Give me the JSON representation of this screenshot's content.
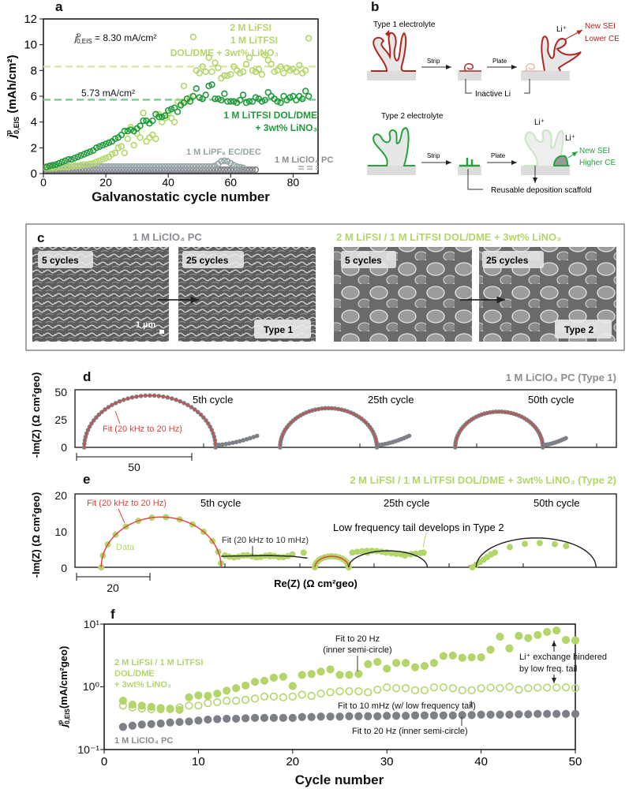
{
  "colors": {
    "dark_green": "#1f9a3a",
    "light_green": "#b3d66a",
    "gray": "#7d8086",
    "blue_gray": "#96a4a8",
    "red": "#e0413a",
    "type1_red": "#b0271f",
    "type2_green": "#22a33c"
  },
  "panels": {
    "a": {
      "letter": "a"
    },
    "b": {
      "letter": "b",
      "type1": "Type 1 electrolyte",
      "type2": "Type 2 electrolyte",
      "strip": "Strip",
      "plate": "Plate",
      "li_ion": "Li⁺",
      "inactive_li": "Inactive Li",
      "new_sei_lower_1": "New SEI",
      "new_sei_lower_2": "Lower CE",
      "new_sei_higher_1": "New SEI",
      "new_sei_higher_2": "Higher CE",
      "scaffold": "Reusable deposition scaffold"
    },
    "c": {
      "letter": "c",
      "title_left": "1 M LiClO₄ PC",
      "title_right": "2 M LiFSI / 1 M LiTFSI DOL/DME + 3wt% LiNO₃",
      "img1": "5 cycles",
      "img2": "25 cycles",
      "img3": "5 cycles",
      "img4": "25 cycles",
      "type1": "Type 1",
      "type2": "Type 2",
      "scalebar": "1 µm"
    },
    "d": {
      "letter": "d"
    },
    "e": {
      "letter": "e"
    },
    "f": {
      "letter": "f"
    }
  },
  "chart_data": [
    {
      "id": "a",
      "type": "scatter",
      "xlabel": "Galvanostatic cycle number",
      "ylabel": {
        "main": "j",
        "sup": "p",
        "sub": "0,EIS",
        "rest": " (mAh/cm²)"
      },
      "xlim": [
        0,
        88
      ],
      "ylim": [
        0,
        12
      ],
      "xticks": [
        0,
        20,
        40,
        60,
        80
      ],
      "yticks": [
        0,
        2,
        4,
        6,
        8,
        10,
        12
      ],
      "reference_lines": [
        {
          "value": 8.3,
          "label_main": "j",
          "label_sup": "p",
          "label_sub": "0,EIS",
          "label_rest": " = 8.30 mA/cm²",
          "color": "#d9e8a6"
        },
        {
          "value": 5.73,
          "label": "5.73 mA/cm²",
          "color": "#7fcc96"
        }
      ],
      "series": [
        {
          "name": "2 M LiFSI / 1 M LiTFSI DOL/DME + 3wt% LiNO₃",
          "label_lines": [
            "2 M LiFSI",
            "1 M LiTFSI",
            "DOL/DME + 3wt% LiNO₃"
          ],
          "color": "#b3d66a",
          "marker": "open-circle",
          "start_cycle": 1,
          "values": [
            0.4,
            0.4,
            0.45,
            0.45,
            0.5,
            0.5,
            0.5,
            0.5,
            0.55,
            0.6,
            0.6,
            0.65,
            0.7,
            0.7,
            0.75,
            0.8,
            0.9,
            1.0,
            1.1,
            1.2,
            1.3,
            1.5,
            1.6,
            2.0,
            2.1,
            1.6,
            2.7,
            3.6,
            2.2,
            3.1,
            2.8,
            4.7,
            2.5,
            2.8,
            3.0,
            2.7,
            4.6,
            4.0,
            4.3,
            4.7,
            4.3,
            4.0,
            5.6,
            5.4,
            6.8,
            5.6,
            5.9,
            10.6,
            8.0,
            7.8,
            8.3,
            7.9,
            9.0,
            7.9,
            8.6,
            8.2,
            7.4,
            7.6,
            7.6,
            7.7,
            8.3,
            8.0,
            7.8,
            7.9,
            8.5,
            9.0,
            8.0,
            7.9,
            8.1,
            7.7,
            9.2,
            8.8,
            8.5,
            7.9,
            8.0,
            8.3,
            7.8,
            8.2,
            8.0,
            8.1,
            7.9,
            8.4,
            7.8,
            8.0,
            10.5
          ]
        },
        {
          "name": "1 M LiTFSI DOL/DME + 3wt% LiNO₃",
          "label_lines": [
            "1 M LiTFSI DOL/DME",
            "+ 3wt% LiNO₃"
          ],
          "color": "#1f9a3a",
          "marker": "open-circle",
          "start_cycle": 1,
          "values": [
            0.5,
            0.6,
            0.65,
            0.7,
            0.8,
            0.9,
            1.0,
            1.1,
            1.1,
            1.2,
            1.3,
            1.4,
            1.5,
            1.6,
            1.7,
            1.8,
            2.0,
            2.1,
            2.2,
            2.3,
            2.4,
            2.5,
            2.7,
            2.8,
            3.0,
            3.3,
            3.3,
            3.4,
            3.3,
            3.5,
            3.7,
            4.1,
            4.1,
            3.9,
            4.1,
            4.6,
            4.4,
            4.4,
            4.5,
            4.9,
            5.0,
            5.1,
            4.8,
            5.3,
            5.5,
            5.8,
            5.6,
            6.0,
            6.6,
            5.9,
            5.8,
            6.1,
            6.8,
            6.9,
            5.8,
            5.8,
            5.7,
            6.2,
            5.6,
            5.6,
            5.6,
            5.5,
            5.7,
            6.1,
            5.5,
            5.6,
            5.6,
            5.9,
            5.8,
            5.6,
            5.7,
            6.3,
            6.0,
            5.8,
            5.6,
            5.5,
            6.0,
            5.7,
            5.9,
            6.0,
            5.7,
            6.0,
            5.8,
            6.4,
            6.0
          ]
        },
        {
          "name": "1 M LiPF₆ EC/DEC",
          "label_lines": [
            "1 M LiPF₆ EC/DEC"
          ],
          "color": "#96a4a8",
          "marker": "open-circle",
          "start_cycle": 1,
          "values": [
            0.55,
            0.55,
            0.55,
            0.55,
            0.55,
            0.55,
            0.55,
            0.55,
            0.55,
            0.55,
            0.55,
            0.55,
            0.55,
            0.55,
            0.55,
            0.55,
            0.55,
            0.55,
            0.55,
            0.55,
            0.55,
            0.55,
            0.55,
            0.55,
            0.55,
            0.55,
            0.55,
            0.55,
            0.55,
            0.55,
            0.55,
            0.55,
            0.55,
            0.55,
            0.55,
            0.55,
            0.55,
            0.55,
            0.55,
            0.55,
            0.55,
            0.55,
            0.55,
            0.55,
            0.55,
            0.55,
            0.55,
            0.55,
            0.55,
            0.55,
            0.55,
            0.55,
            0.55,
            0.55,
            0.6,
            0.75,
            0.95,
            1.0,
            0.95,
            0.8,
            0.65,
            0.55,
            0.5,
            0.45
          ]
        },
        {
          "name": "1 M LiClO₄ PC",
          "label_lines": [
            "1 M LiClO₄ PC"
          ],
          "color": "#7d8086",
          "marker": "open-circle",
          "start_cycle": 1,
          "values": [
            0.3,
            0.3,
            0.3,
            0.3,
            0.3,
            0.3,
            0.3,
            0.3,
            0.3,
            0.3,
            0.3,
            0.3,
            0.3,
            0.3,
            0.3,
            0.3,
            0.3,
            0.3,
            0.3,
            0.3,
            0.3,
            0.3,
            0.3,
            0.3,
            0.3,
            0.3,
            0.3,
            0.3,
            0.3,
            0.3,
            0.3,
            0.3,
            0.3,
            0.3,
            0.3,
            0.3,
            0.3,
            0.3,
            0.3,
            0.3,
            0.3,
            0.3,
            0.3,
            0.3,
            0.3,
            0.3,
            0.3,
            0.3,
            0.3,
            0.3,
            0.3,
            0.3,
            0.3,
            0.3,
            0.3,
            0.3,
            0.3,
            0.3,
            0.3,
            0.3,
            0.3,
            0.3,
            0.3,
            0.3,
            0.3,
            0.3,
            0.3,
            0.3
          ]
        }
      ],
      "grid": false
    },
    {
      "id": "d",
      "type": "line",
      "title": "1 M LiClO₄ PC (Type 1)",
      "ylabel": "-Im(Z) (Ω cm²geo)",
      "yticks": [
        0,
        25,
        50
      ],
      "ylim": [
        0,
        50
      ],
      "scale_bar": "50",
      "fit_label": "Fit (20 kHz to 20 Hz)",
      "cycles": [
        {
          "label": "5th cycle",
          "re_start": 4,
          "re_end": 61,
          "peak": 45,
          "tail_re": 79,
          "tail_im": 10
        },
        {
          "label": "25th cycle",
          "re_start": 89,
          "re_end": 131,
          "peak": 34,
          "tail_re": 145,
          "tail_im": 10
        },
        {
          "label": "50th cycle",
          "re_start": 165,
          "re_end": 203,
          "peak": 31,
          "tail_re": 213,
          "tail_im": 8
        }
      ]
    },
    {
      "id": "e",
      "type": "line",
      "title": "2 M LiFSI / 1 M LiTFSI DOL/DME + 3wt% LiNO₃ (Type 2)",
      "ylabel": "-Im(Z) (Ω cm²geo)",
      "xlabel": "Re(Z) (Ω cm²geo)",
      "yticks": [
        0,
        10,
        20
      ],
      "ylim": [
        0,
        20
      ],
      "scale_bar": "20",
      "fit_hf_label": "Fit (20 kHz to 20 Hz)",
      "fit_lf_label": "Fit (20 kHz to 10 mHz)",
      "data_label": "Data",
      "annotation": "Low frequency tail develops in Type 2",
      "cycles": [
        {
          "label": "5th cycle",
          "re_start": 7,
          "re_end": 39,
          "peak": 13.7,
          "tail": [
            [
              45,
              3.2
            ],
            [
              52,
              3
            ],
            [
              58,
              3.5
            ],
            [
              61,
              4
            ]
          ],
          "lf_fit_end": [
            62,
            2.5
          ]
        },
        {
          "label": "25th cycle",
          "small_arc": [
            64,
            73,
            3
          ],
          "re_end": 94,
          "peak": 4.5,
          "tail": [
            [
              78,
              4
            ],
            [
              83,
              4
            ],
            [
              88,
              3.2
            ],
            [
              93,
              4
            ]
          ]
        },
        {
          "label": "50th cycle",
          "small_arc": [
            105,
            107,
            0.6
          ],
          "re_end": 139,
          "peak": 8,
          "tail": [
            [
              112,
              4
            ],
            [
              116,
              5.5
            ],
            [
              120,
              6.4
            ],
            [
              124,
              6.6
            ],
            [
              128,
              6.3
            ],
            [
              131,
              5.8
            ]
          ]
        }
      ]
    },
    {
      "id": "f",
      "type": "scatter",
      "xlabel": "Cycle number",
      "ylabel": {
        "main": "j",
        "sup": "p",
        "sub": "0,EIS",
        "rest": "(mA/cm²geo)"
      },
      "xlim": [
        0,
        50
      ],
      "ylim": [
        0.1,
        10
      ],
      "yscale": "log",
      "xticks": [
        0,
        10,
        20,
        30,
        40,
        50
      ],
      "yticks": [
        "10⁻¹",
        "10⁰",
        "10¹"
      ],
      "labels": {
        "green": [
          "2 M LiFSI / 1 M LiTFSI",
          "DOL/DME",
          "+ 3wt% LiNO₃"
        ],
        "gray": "1 M LiClO₄ PC"
      },
      "annotations": {
        "fit20_top": [
          "Fit to 20 Hz",
          "(inner semi-circle)"
        ],
        "fit10": "Fit to 10 mHz (w/ low frequency tail)",
        "fit20_bottom": "Fit to 20 Hz (inner semi-circle)",
        "hindered": [
          "Li⁺ exchange hindered",
          "by low freq. tail"
        ]
      },
      "series": [
        {
          "color": "#b3d66a",
          "marker": "filled-circle",
          "start_cycle": 2,
          "values": [
            0.6,
            0.52,
            0.5,
            0.48,
            0.46,
            0.45,
            0.43,
            0.68,
            0.73,
            0.72,
            0.78,
            0.87,
            0.95,
            1.05,
            1.2,
            1.25,
            1.4,
            1.45,
            1.03,
            1.55,
            1.6,
            1.75,
            1.9,
            1.55,
            1.55,
            1.6,
            2.3,
            2.5,
            1.95,
            2.4,
            2.4,
            2.05,
            2.15,
            2.4,
            3.1,
            3.15,
            2.9,
            2.95,
            2.95,
            3.9,
            6.3,
            4.1,
            6.5,
            6.0,
            6.7,
            7.5,
            7.9,
            5.6,
            5.5
          ]
        },
        {
          "color": "#b3d66a",
          "marker": "open-circle",
          "start_cycle": 2,
          "values": [
            0.5,
            0.47,
            0.45,
            0.44,
            0.44,
            0.44,
            0.47,
            0.5,
            0.5,
            0.55,
            0.57,
            0.6,
            0.6,
            0.62,
            0.65,
            0.7,
            0.7,
            0.68,
            0.7,
            0.75,
            0.72,
            0.78,
            0.82,
            0.85,
            0.85,
            0.85,
            0.82,
            0.9,
            0.98,
            0.95,
            0.95,
            0.88,
            0.88,
            0.98,
            0.98,
            0.95,
            0.88,
            0.88,
            0.95,
            0.97,
            0.95,
            1.0,
            0.9,
            0.95,
            0.97,
            0.97,
            0.97,
            0.98,
            0.95
          ]
        },
        {
          "color": "#7d8086",
          "marker": "filled-circle",
          "start_cycle": 2,
          "values": [
            0.23,
            0.24,
            0.25,
            0.255,
            0.26,
            0.27,
            0.275,
            0.28,
            0.29,
            0.3,
            0.305,
            0.31,
            0.31,
            0.315,
            0.32,
            0.32,
            0.32,
            0.32,
            0.32,
            0.33,
            0.33,
            0.335,
            0.335,
            0.335,
            0.34,
            0.34,
            0.34,
            0.34,
            0.345,
            0.345,
            0.345,
            0.35,
            0.35,
            0.35,
            0.35,
            0.35,
            0.355,
            0.355,
            0.36,
            0.36,
            0.36,
            0.36,
            0.365,
            0.365,
            0.37,
            0.37,
            0.37,
            0.37,
            0.37
          ]
        }
      ],
      "grid": false
    }
  ]
}
